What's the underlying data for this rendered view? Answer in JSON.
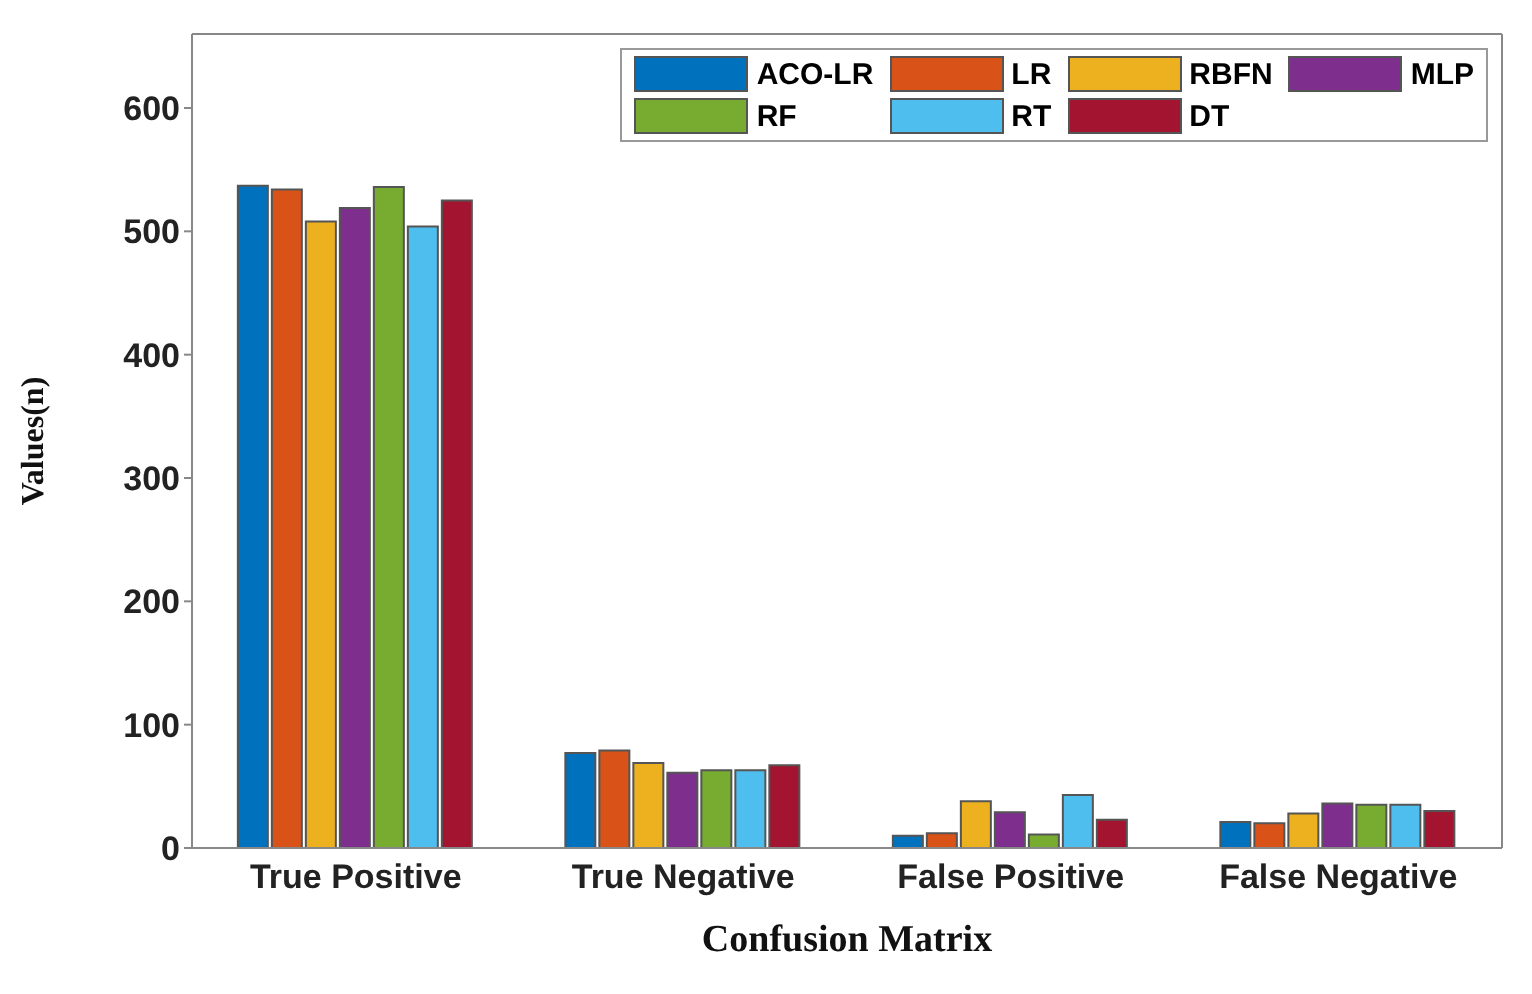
{
  "chart_data": {
    "type": "bar",
    "xlabel": "Confusion Matrix",
    "ylabel": "Values(n)",
    "categories": [
      "True Positive",
      "True Negative",
      "False Positive",
      "False Negative"
    ],
    "series": [
      {
        "name": "ACO-LR",
        "color": "#0072bd",
        "values": [
          537,
          77,
          10,
          21
        ]
      },
      {
        "name": "LR",
        "color": "#d95319",
        "values": [
          534,
          79,
          12,
          20
        ]
      },
      {
        "name": "RBFN",
        "color": "#edb120",
        "values": [
          508,
          69,
          38,
          28
        ]
      },
      {
        "name": "MLP",
        "color": "#7e2f8e",
        "values": [
          519,
          61,
          29,
          36
        ]
      },
      {
        "name": "RF",
        "color": "#77ac30",
        "values": [
          536,
          63,
          11,
          35
        ]
      },
      {
        "name": "RT",
        "color": "#4dbeee",
        "values": [
          504,
          63,
          43,
          35
        ]
      },
      {
        "name": "DT",
        "color": "#a2142f",
        "values": [
          525,
          67,
          23,
          30
        ]
      }
    ],
    "ylim": [
      0,
      660
    ],
    "yticks": [
      0,
      100,
      200,
      300,
      400,
      500,
      600
    ],
    "grid": false,
    "legend": "top right"
  }
}
